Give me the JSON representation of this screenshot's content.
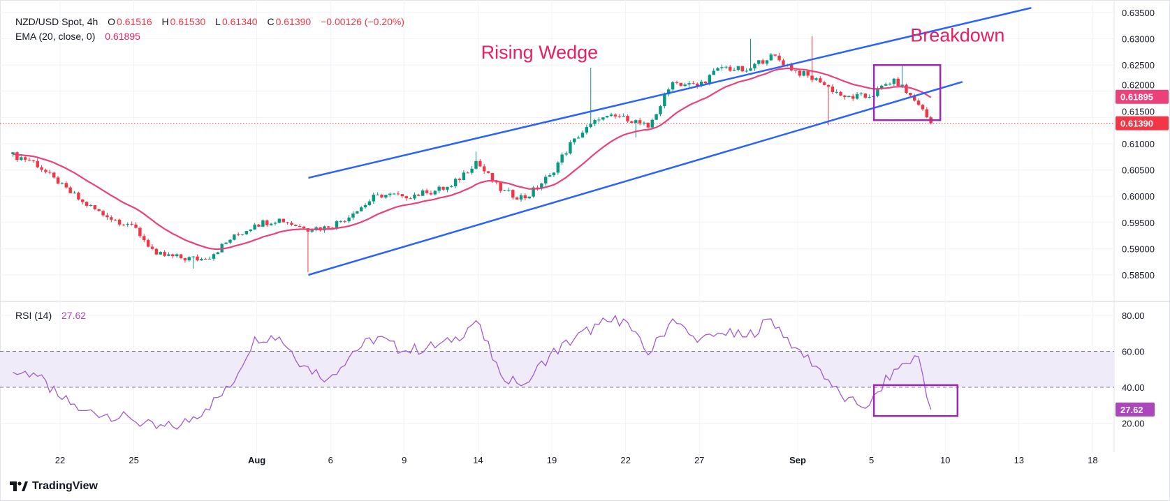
{
  "header": {
    "symbol": "NZD/USD Spot, 4h",
    "o_label": "O",
    "o_value": "0.61516",
    "h_label": "H",
    "h_value": "0.61530",
    "l_label": "L",
    "l_value": "0.61340",
    "c_label": "C",
    "c_value": "0.61390",
    "change": "−0.00126 (−0.20%)",
    "ema_label": "EMA (20, close, 0)",
    "ema_value": "0.61895",
    "rsi_label": "RSI (14)",
    "rsi_value": "27.62"
  },
  "branding": {
    "logo_text": "TradingView"
  },
  "colors": {
    "up": "#089981",
    "down": "#f23645",
    "ema": "#ec407a",
    "wedge": "#2962ff",
    "rsi": "#a05bd0",
    "rsi_band": "#f0ebf8",
    "box": "#9c27b0",
    "ema_badge": "#ec407a",
    "price_badge": "#f23645",
    "rsi_badge": "#ab47bc"
  },
  "chart_data": [
    {
      "type": "candlestick",
      "title": "NZD/USD Spot, 4h",
      "ylim": [
        0.583,
        0.636
      ],
      "y_ticks": [
        "0.58500",
        "0.59000",
        "0.59500",
        "0.60000",
        "0.60500",
        "0.61000",
        "0.61500",
        "0.62000",
        "0.62500",
        "0.63000",
        "0.63500"
      ],
      "x_ticks": [
        {
          "label": "22",
          "day": 2,
          "bold": false
        },
        {
          "label": "25",
          "day": 5,
          "bold": false
        },
        {
          "label": "Aug",
          "day": 10,
          "bold": true
        },
        {
          "label": "6",
          "day": 13,
          "bold": false
        },
        {
          "label": "9",
          "day": 16,
          "bold": false
        },
        {
          "label": "14",
          "day": 19,
          "bold": false
        },
        {
          "label": "19",
          "day": 22,
          "bold": false
        },
        {
          "label": "22",
          "day": 25,
          "bold": false
        },
        {
          "label": "27",
          "day": 28,
          "bold": false
        },
        {
          "label": "Sep",
          "day": 32,
          "bold": true
        },
        {
          "label": "5",
          "day": 35,
          "bold": false
        },
        {
          "label": "10",
          "day": 38,
          "bold": false
        },
        {
          "label": "13",
          "day": 41,
          "bold": false
        },
        {
          "label": "18",
          "day": 44,
          "bold": false
        }
      ],
      "candles_per_day": 6,
      "start_price": 0.608,
      "daily_close": [
        0.6067,
        0.6024,
        0.5989,
        0.596,
        0.5946,
        0.5889,
        0.5882,
        0.588,
        0.5917,
        0.5946,
        0.5957,
        0.5939,
        0.594,
        0.5967,
        0.6003,
        0.6,
        0.6006,
        0.6019,
        0.6067,
        0.601,
        0.5996,
        0.604,
        0.611,
        0.6146,
        0.6153,
        0.6131,
        0.6217,
        0.621,
        0.6246,
        0.6239,
        0.627,
        0.6239,
        0.6217,
        0.6189,
        0.6189,
        0.6224,
        0.6174,
        0.6139
      ],
      "last_day_candles": 3,
      "wick_extremes": [
        {
          "day": 7,
          "candle": 2,
          "low": 0.5862
        },
        {
          "day": 12,
          "candle": 0,
          "low": 0.5855
        },
        {
          "day": 18,
          "candle": 5,
          "high": 0.6085
        },
        {
          "day": 23,
          "candle": 3,
          "high": 0.6245
        },
        {
          "day": 25,
          "candle": 2,
          "low": 0.6112
        },
        {
          "day": 30,
          "candle": 0,
          "high": 0.63
        },
        {
          "day": 32,
          "candle": 3,
          "high": 0.6305
        },
        {
          "day": 33,
          "candle": 1,
          "low": 0.6135
        },
        {
          "day": 36,
          "candle": 1,
          "high": 0.625
        }
      ],
      "ema": {
        "name": "EMA (20, close, 0)",
        "period": 20,
        "last": 0.61895
      },
      "last_price": 0.6139,
      "price_badges": [
        {
          "name": "ema",
          "value": 0.61895,
          "text": "0.61895"
        },
        {
          "name": "close",
          "value": 0.6139,
          "text": "0.61390"
        }
      ],
      "trendlines": [
        {
          "name": "wedge-upper",
          "from": [
            12.1,
            0.6035
          ],
          "to": [
            41.5,
            0.6359
          ]
        },
        {
          "name": "wedge-lower",
          "from": [
            12.1,
            0.585
          ],
          "to": [
            38.7,
            0.6218
          ]
        }
      ],
      "boxes": [
        {
          "name": "breakdown-box",
          "day": [
            35.1,
            37.8
          ],
          "price": [
            0.6145,
            0.625
          ]
        }
      ],
      "annotations": [
        {
          "name": "rising-wedge-label",
          "text": "Rising Wedge",
          "day": 21.5,
          "price": 0.6262
        },
        {
          "name": "breakdown-label",
          "text": "Breakdown",
          "day": 38.5,
          "price": 0.6295
        }
      ]
    },
    {
      "type": "line",
      "title": "RSI (14)",
      "ylim": [
        15,
        85
      ],
      "y_ticks": [
        "80.00",
        "60.00",
        "40.00",
        "20.00"
      ],
      "band": [
        40,
        60
      ],
      "daily_rsi": [
        48,
        35,
        27,
        25,
        22,
        17,
        19,
        28,
        40,
        68,
        68,
        52,
        45,
        60,
        68,
        60,
        62,
        65,
        77,
        47,
        42,
        58,
        67,
        75,
        78,
        58,
        78,
        65,
        70,
        68,
        78,
        62,
        50,
        32,
        30,
        50,
        57,
        27.62
      ],
      "last": 27.62,
      "last_text": "27.62",
      "boxes": [
        {
          "name": "rsi-breakdown-box",
          "day": [
            35.1,
            38.5
          ],
          "rsi": [
            24,
            41.2
          ]
        }
      ]
    }
  ]
}
